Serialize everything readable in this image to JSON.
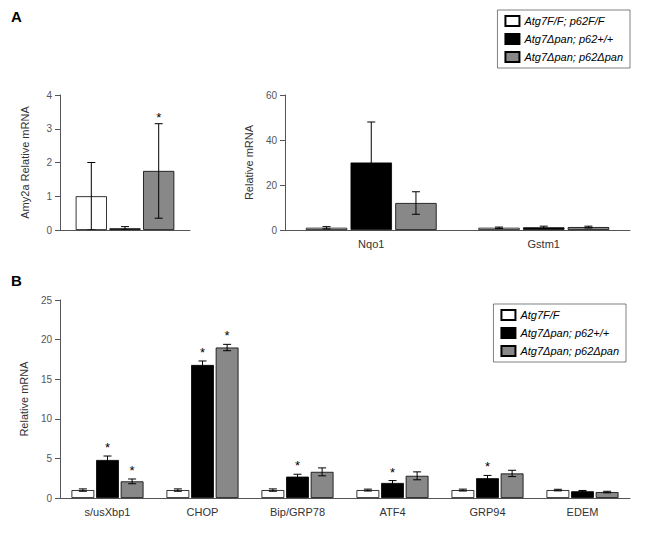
{
  "chart_data": [
    {
      "type": "bar",
      "title": "A",
      "categories": [
        null
      ],
      "series": [
        {
          "name": "Atg7F/F; p62F/F",
          "color": "white",
          "values": [
            1.0
          ],
          "errors": [
            1.0
          ]
        },
        {
          "name": "Atg7Δpan; p62+/+",
          "color": "black",
          "values": [
            0.05
          ],
          "errors": [
            0.05
          ]
        },
        {
          "name": "Atg7Δpan; p62Δpan",
          "color": "#888888",
          "values": [
            1.75
          ],
          "errors": [
            1.4
          ]
        }
      ],
      "ylabel": "Amy2a Relative mRNA",
      "ylim": [
        0,
        4
      ],
      "yticks": [
        0,
        1,
        2,
        3,
        4
      ],
      "tick_labels": "y",
      "legend": "upper right",
      "annotations": [
        {
          "text": "*",
          "series": "Atg7Δpan; p62Δpan",
          "y": 3.15
        }
      ]
    },
    {
      "type": "bar",
      "categories": [
        "Nqo1",
        "Gstm1"
      ],
      "series": [
        {
          "name": "Atg7F/F; p62F/F",
          "color": "white",
          "values": [
            1.0,
            1.0
          ],
          "errors": [
            0.5,
            0.3
          ]
        },
        {
          "name": "Atg7Δpan; p62+/+",
          "color": "black",
          "values": [
            30.0,
            1.2
          ],
          "errors": [
            18.0,
            0.5
          ]
        },
        {
          "name": "Atg7Δpan; p62Δpan",
          "color": "#888888",
          "values": [
            12.0,
            1.3
          ],
          "errors": [
            5.0,
            0.4
          ]
        }
      ],
      "ylabel": "Relative mRNA",
      "ylim": [
        0,
        60
      ],
      "yticks": [
        0,
        20,
        40,
        60
      ]
    },
    {
      "type": "bar",
      "title": "B",
      "categories": [
        "s/usXbp1",
        "CHOP",
        "Bip/GRP78",
        "ATF4",
        "GRP94",
        "EDEM"
      ],
      "series": [
        {
          "name": "Atg7F/F",
          "color": "white",
          "values": [
            1.0,
            1.0,
            1.0,
            1.0,
            1.0,
            1.0
          ],
          "errors": [
            0.15,
            0.15,
            0.15,
            0.12,
            0.12,
            0.1
          ]
        },
        {
          "name": "Atg7Δpan; p62+/+",
          "color": "black",
          "values": [
            4.8,
            16.8,
            2.7,
            1.9,
            2.5,
            0.85
          ],
          "errors": [
            0.5,
            0.5,
            0.3,
            0.3,
            0.35,
            0.1
          ]
        },
        {
          "name": "Atg7Δpan; p62Δpan",
          "color": "#888888",
          "values": [
            2.1,
            19.0,
            3.3,
            2.8,
            3.1,
            0.75
          ],
          "errors": [
            0.3,
            0.4,
            0.5,
            0.5,
            0.4,
            0.1
          ]
        }
      ],
      "ylabel": "Relative mRNA",
      "ylim": [
        0,
        25
      ],
      "yticks": [
        0,
        5,
        10,
        15,
        20,
        25
      ],
      "legend": "upper right",
      "annotations": [
        {
          "text": "*",
          "series": "Atg7Δpan; p62+/+",
          "category": "s/usXbp1"
        },
        {
          "text": "*",
          "series": "Atg7Δpan; p62+/+",
          "category": "CHOP"
        },
        {
          "text": "*",
          "series": "Atg7Δpan; p62+/+",
          "category": "Bip/GRP78"
        },
        {
          "text": "*",
          "series": "Atg7Δpan; p62+/+",
          "category": "ATF4"
        },
        {
          "text": "*",
          "series": "Atg7Δpan; p62+/+",
          "category": "GRP94"
        },
        {
          "text": "*",
          "series": "Atg7Δpan; p62Δpan",
          "category": "s/usXbp1"
        },
        {
          "text": "*",
          "series": "Atg7Δpan; p62Δpan",
          "category": "CHOP"
        }
      ]
    }
  ]
}
